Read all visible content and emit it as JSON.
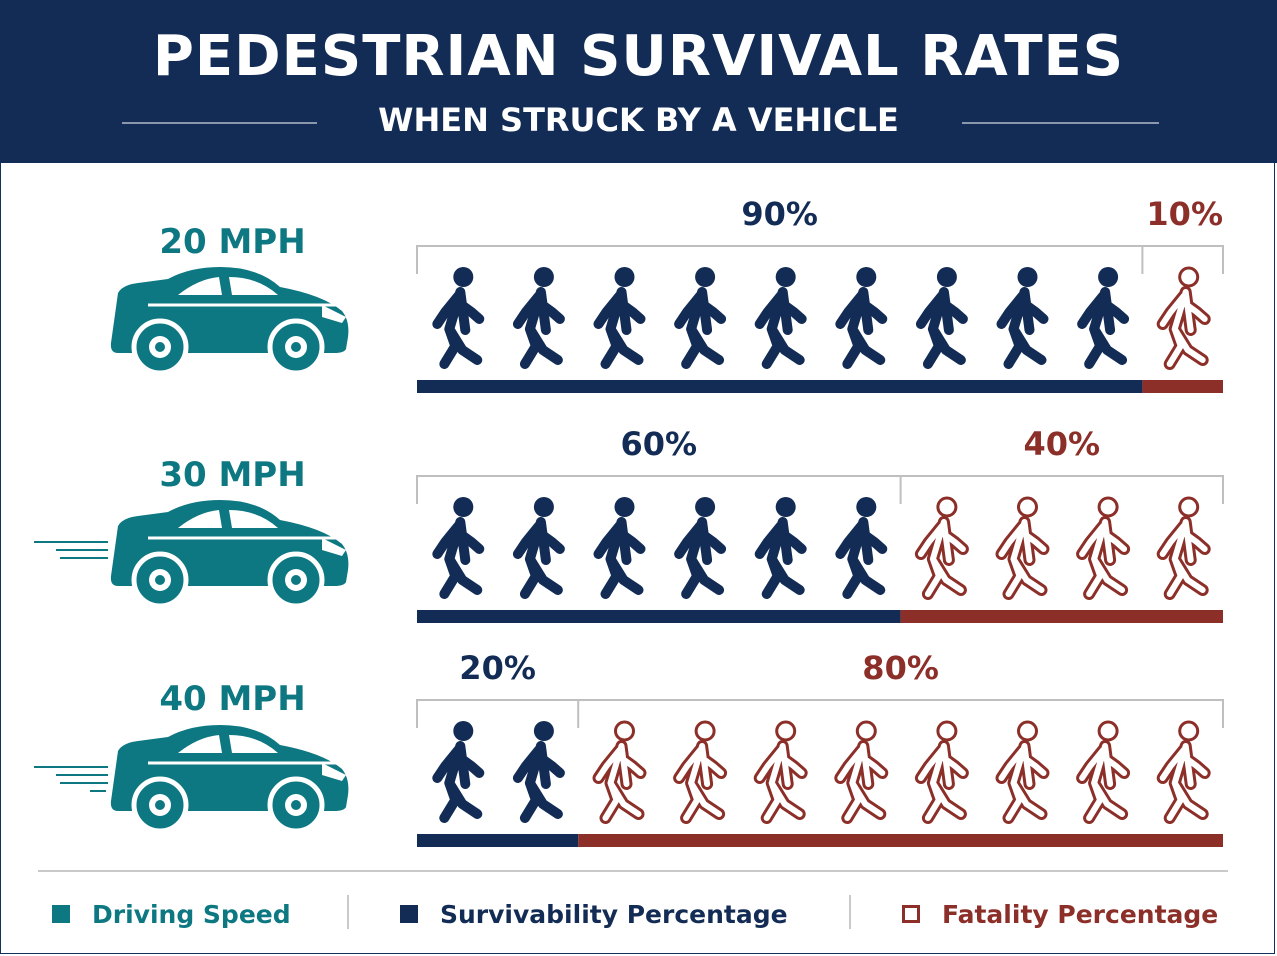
{
  "title": "PEDESTRIAN SURVIVAL RATES",
  "subtitle": "WHEN STRUCK BY A VEHICLE",
  "colors": {
    "header_bg": "#132c55",
    "driving_speed": "#0d7782",
    "survivability": "#132c55",
    "fatality": "#8c2f29"
  },
  "chart_data": {
    "type": "bar",
    "categories": [
      "20 MPH",
      "30 MPH",
      "40 MPH"
    ],
    "series": [
      {
        "name": "Survivability Percentage",
        "values": [
          90,
          60,
          20
        ],
        "labels": [
          "90%",
          "60%",
          "20%"
        ]
      },
      {
        "name": "Fatality Percentage",
        "values": [
          10,
          40,
          80
        ],
        "labels": [
          "10%",
          "40%",
          "80%"
        ]
      }
    ],
    "units": "%",
    "figures_per_row": 10
  },
  "legend": [
    {
      "label": "Driving Speed",
      "style": "filled",
      "color": "#0d7782"
    },
    {
      "label": "Survivability Percentage",
      "style": "filled",
      "color": "#132c55"
    },
    {
      "label": "Fatality Percentage",
      "style": "outline",
      "color": "#8c2f29"
    }
  ],
  "icons": {
    "vehicle": "car-icon",
    "person": "walking-person-icon",
    "motion": "speed-lines-icon"
  }
}
